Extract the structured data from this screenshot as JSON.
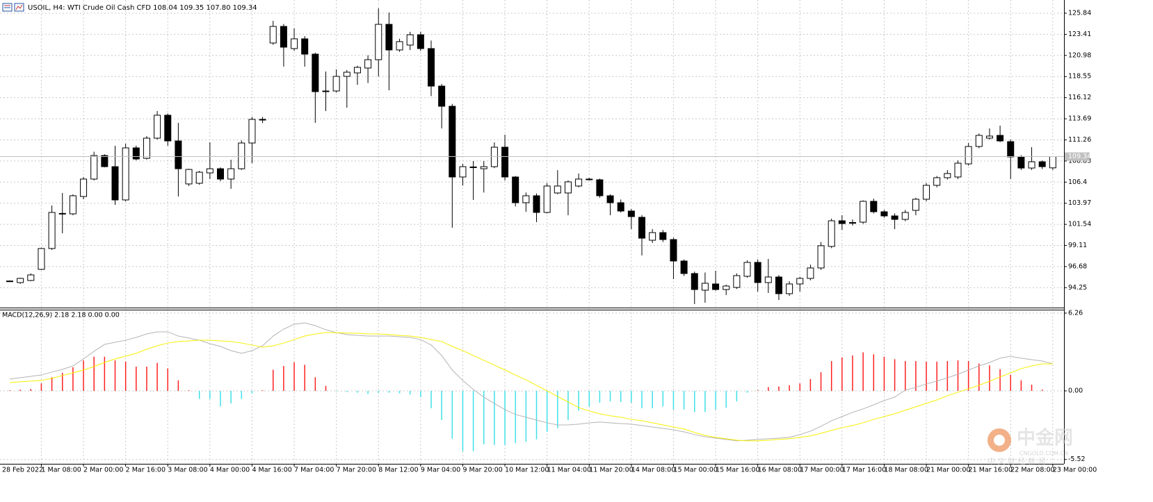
{
  "chart_data": [
    {
      "type": "candlestick",
      "title": "USOIL, H4:  WTI Crude Oil Cash CFD  108.04 109.35 107.80 109.34",
      "categories": [
        "28 Feb 2022",
        null,
        null,
        "1 Mar 08:00",
        null,
        null,
        null,
        "2 Mar 00:00",
        null,
        null,
        null,
        "2 Mar 16:00",
        null,
        null,
        null,
        "3 Mar 08:00",
        null,
        null,
        null,
        "4 Mar 00:00",
        null,
        null,
        null,
        "4 Mar 16:00",
        null,
        null,
        null,
        "7 Mar 04:00",
        null,
        null,
        null,
        "7 Mar 20:00",
        null,
        null,
        null,
        "8 Mar 12:00",
        null,
        null,
        null,
        "9 Mar 04:00",
        null,
        null,
        null,
        "9 Mar 20:00",
        null,
        null,
        null,
        "10 Mar 12:00",
        null,
        null,
        null,
        "11 Mar 04:00",
        null,
        null,
        null,
        "11 Mar 20:00",
        null,
        null,
        null,
        "14 Mar 08:00",
        null,
        null,
        null,
        "15 Mar 00:00",
        null,
        null,
        null,
        "15 Mar 16:00",
        null,
        null,
        null,
        "16 Mar 08:00",
        null,
        null,
        null,
        "17 Mar 00:00",
        null,
        null,
        null,
        "17 Mar 16:00",
        null,
        null,
        null,
        "18 Mar 08:00",
        null,
        null,
        null,
        "21 Mar 00:00",
        null,
        null,
        null,
        "21 Mar 16:00",
        null,
        null,
        null,
        "22 Mar 08:00",
        null,
        null,
        null,
        "23 Mar 00:00"
      ],
      "open": [
        95.0,
        94.84,
        95.08,
        96.36,
        98.76,
        102.75,
        102.75,
        104.75,
        106.75,
        109.46,
        108.18,
        104.35,
        110.34,
        109.14,
        111.46,
        114.1,
        111.14,
        106.19,
        106.27,
        107.46,
        107.94,
        106.75,
        107.94,
        110.9,
        113.54,
        122.41,
        124.32,
        121.77,
        122.89,
        121.13,
        116.89,
        116.89,
        118.57,
        118.97,
        119.53,
        120.49,
        124.56,
        121.61,
        122.17,
        123.36,
        121.77,
        117.45,
        115.13,
        106.99,
        108.1,
        107.94,
        108.18,
        110.42,
        106.99,
        104.03,
        104.83,
        102.91,
        105.15,
        105.15,
        105.95,
        106.75,
        106.67,
        104.83,
        104.03,
        103.07,
        102.35,
        99.71,
        100.59,
        99.79,
        97.32,
        95.88,
        93.96,
        94.68,
        94.04,
        94.28,
        95.56,
        97.16,
        94.84,
        95.48,
        93.56,
        94.68,
        95.32,
        96.52,
        99.0,
        101.95,
        101.71,
        101.79,
        104.19,
        102.99,
        102.51,
        102.11,
        103.15,
        104.43,
        106.03,
        106.91,
        106.99,
        108.5,
        110.5,
        111.46,
        111.78,
        111.06,
        109.3,
        108.02,
        108.74,
        108.04
      ],
      "high": [
        95.08,
        95.4,
        95.9,
        98.84,
        103.71,
        105.15,
        104.99,
        106.99,
        109.9,
        109.6,
        110.58,
        110.82,
        110.6,
        111.7,
        114.58,
        114.3,
        113.22,
        107.94,
        107.7,
        110.98,
        108.1,
        108.98,
        111.2,
        113.9,
        113.9,
        124.96,
        124.6,
        124.1,
        123.2,
        121.3,
        119.13,
        119.37,
        119.3,
        119.8,
        121.0,
        126.4,
        125.92,
        122.9,
        123.7,
        123.7,
        122.7,
        117.7,
        115.4,
        108.5,
        108.82,
        108.82,
        110.98,
        111.86,
        107.1,
        105.2,
        105.1,
        106.3,
        107.78,
        106.6,
        107.39,
        106.9,
        106.8,
        105.0,
        104.4,
        103.3,
        102.6,
        101.0,
        100.9,
        100.0,
        97.5,
        96.1,
        96.0,
        96.2,
        94.6,
        95.9,
        97.4,
        97.5,
        97.56,
        95.7,
        95.0,
        95.5,
        96.9,
        99.5,
        102.2,
        102.59,
        102.1,
        104.3,
        104.5,
        103.2,
        102.8,
        103.2,
        104.6,
        106.3,
        107.1,
        107.78,
        108.9,
        110.9,
        112.0,
        112.58,
        112.9,
        111.3,
        109.5,
        110.42,
        108.9,
        109.35
      ],
      "low": [
        94.92,
        94.7,
        95.0,
        96.28,
        98.6,
        100.51,
        102.59,
        104.43,
        106.6,
        108.1,
        103.79,
        104.2,
        108.9,
        109.0,
        111.3,
        110.58,
        104.75,
        105.95,
        106.1,
        106.75,
        106.5,
        105.63,
        107.8,
        108.58,
        113.2,
        122.2,
        119.69,
        121.5,
        119.69,
        113.22,
        114.58,
        116.7,
        114.97,
        117.6,
        117.8,
        118.57,
        116.97,
        121.4,
        121.6,
        121.5,
        116.3,
        112.58,
        101.15,
        106.0,
        104.35,
        105.2,
        108.0,
        106.6,
        103.6,
        102.99,
        101.79,
        102.8,
        105.0,
        102.59,
        105.8,
        106.6,
        104.6,
        102.59,
        102.9,
        100.99,
        97.96,
        99.4,
        99.5,
        95.24,
        95.6,
        92.36,
        92.52,
        93.9,
        93.4,
        94.1,
        95.4,
        93.8,
        93.64,
        92.84,
        93.3,
        93.8,
        95.1,
        96.3,
        98.8,
        100.9,
        101.4,
        101.6,
        102.8,
        102.3,
        100.99,
        101.9,
        102.59,
        104.2,
        105.8,
        106.7,
        106.75,
        108.3,
        110.3,
        111.3,
        111.0,
        106.75,
        107.8,
        107.8,
        107.9,
        107.8
      ],
      "close": [
        95.02,
        95.32,
        95.72,
        98.76,
        102.91,
        102.8,
        104.83,
        106.75,
        109.46,
        108.18,
        104.35,
        110.34,
        109.06,
        111.46,
        114.1,
        111.14,
        107.94,
        107.86,
        107.54,
        107.94,
        106.75,
        107.94,
        110.9,
        113.62,
        113.62,
        124.32,
        121.93,
        122.89,
        121.13,
        116.81,
        116.89,
        118.57,
        119.05,
        119.61,
        120.49,
        124.56,
        121.61,
        122.57,
        123.36,
        121.77,
        117.45,
        115.13,
        106.99,
        108.18,
        108.15,
        108.18,
        110.42,
        106.99,
        104.03,
        104.83,
        102.91,
        105.95,
        105.95,
        106.43,
        106.75,
        106.67,
        104.83,
        104.03,
        103.07,
        102.43,
        99.95,
        100.59,
        99.79,
        97.32,
        95.88,
        94.04,
        94.76,
        94.04,
        94.44,
        95.64,
        97.16,
        94.84,
        95.48,
        93.56,
        94.68,
        95.32,
        96.52,
        99.08,
        101.95,
        101.63,
        101.75,
        104.19,
        102.99,
        102.51,
        102.11,
        102.91,
        104.43,
        106.03,
        106.91,
        107.39,
        108.58,
        110.5,
        111.78,
        111.7,
        111.14,
        109.3,
        108.02,
        108.74,
        108.18,
        109.34
      ],
      "up_color": "#ffffff",
      "down_color": "#000000",
      "wick_color": "#000000",
      "ylim": [
        91.96,
        127.36
      ],
      "yticks": [
        94.25,
        96.68,
        99.11,
        101.54,
        103.97,
        106.4,
        108.83,
        111.26,
        113.69,
        116.12,
        118.55,
        120.98,
        123.41,
        125.84
      ],
      "last_price": 109.34,
      "last_price_color": "#c0c0c0",
      "grid": true
    },
    {
      "type": "macd",
      "title": "MACD(12,26,9) 2.18 2.18 0.00 0.00",
      "histogram": {
        "up_color": "#ff2020",
        "down_color": "#40e0e8",
        "values": [
          0.05,
          0.1,
          0.15,
          0.6,
          1.1,
          1.45,
          1.9,
          2.45,
          2.75,
          2.75,
          2.45,
          2.35,
          1.95,
          1.95,
          2.25,
          1.8,
          0.85,
          0.05,
          -0.65,
          -0.65,
          -1.25,
          -1.0,
          -0.65,
          -0.2,
          0.05,
          1.7,
          2.0,
          2.3,
          2.1,
          1.1,
          0.4,
          -0.05,
          -0.1,
          -0.15,
          -0.25,
          -0.15,
          -0.15,
          -0.2,
          -0.3,
          -0.5,
          -1.4,
          -2.35,
          -3.85,
          -4.85,
          -4.85,
          -4.3,
          -4.35,
          -4.35,
          -4.2,
          -4.1,
          -3.9,
          -3.3,
          -3.0,
          -2.35,
          -1.6,
          -1.25,
          -0.95,
          -0.85,
          -0.9,
          -0.95,
          -1.4,
          -1.4,
          -1.25,
          -1.5,
          -1.5,
          -1.7,
          -1.7,
          -1.5,
          -1.35,
          -0.85,
          -0.15,
          0.05,
          0.3,
          0.35,
          0.45,
          0.6,
          0.95,
          1.5,
          2.4,
          2.7,
          2.85,
          3.1,
          2.95,
          2.75,
          2.55,
          2.4,
          2.4,
          2.35,
          2.35,
          2.4,
          2.45,
          2.4,
          2.2,
          2.05,
          1.75,
          1.3,
          0.85,
          0.5,
          0.1,
          0
        ]
      },
      "lines": [
        {
          "color": "#b4b4b4",
          "values": [
            0.95,
            1.06,
            1.17,
            1.28,
            1.51,
            1.73,
            2.01,
            2.57,
            3.18,
            3.74,
            3.91,
            4.08,
            4.3,
            4.58,
            4.75,
            4.75,
            4.41,
            4.25,
            4.08,
            3.8,
            3.58,
            3.24,
            3.02,
            3.24,
            3.63,
            4.41,
            4.97,
            5.36,
            5.47,
            5.25,
            4.92,
            4.69,
            4.53,
            4.47,
            4.41,
            4.41,
            4.41,
            4.36,
            4.3,
            4.13,
            3.69,
            2.85,
            1.68,
            0.84,
            0.11,
            -0.5,
            -1.01,
            -1.51,
            -1.9,
            -2.12,
            -2.35,
            -2.57,
            -2.74,
            -2.74,
            -2.68,
            -2.57,
            -2.51,
            -2.57,
            -2.63,
            -2.68,
            -2.79,
            -2.91,
            -3.02,
            -3.13,
            -3.3,
            -3.52,
            -3.69,
            -3.8,
            -3.91,
            -4.02,
            -3.97,
            -3.91,
            -3.85,
            -3.8,
            -3.74,
            -3.52,
            -3.24,
            -2.85,
            -2.4,
            -2.07,
            -1.73,
            -1.45,
            -1.12,
            -0.78,
            -0.5,
            0.06,
            0.28,
            0.56,
            0.78,
            1.06,
            1.34,
            1.68,
            2.01,
            2.29,
            2.63,
            2.79,
            2.63,
            2.51,
            2.4,
            2.18
          ]
        },
        {
          "color": "#f5f000",
          "values": [
            0.67,
            0.73,
            0.78,
            0.84,
            1.01,
            1.23,
            1.45,
            1.68,
            1.96,
            2.29,
            2.57,
            2.79,
            3.02,
            3.35,
            3.63,
            3.85,
            3.97,
            4.02,
            4.08,
            4.08,
            4.02,
            3.97,
            3.85,
            3.69,
            3.52,
            3.63,
            3.85,
            4.13,
            4.41,
            4.58,
            4.69,
            4.69,
            4.64,
            4.64,
            4.58,
            4.58,
            4.53,
            4.47,
            4.41,
            4.3,
            4.13,
            3.97,
            3.58,
            3.24,
            2.85,
            2.46,
            2.07,
            1.68,
            1.28,
            0.89,
            0.45,
            0.0,
            -0.45,
            -0.89,
            -1.34,
            -1.62,
            -1.84,
            -2.01,
            -2.12,
            -2.29,
            -2.4,
            -2.57,
            -2.74,
            -2.91,
            -3.07,
            -3.35,
            -3.58,
            -3.74,
            -3.85,
            -3.97,
            -4.02,
            -4.02,
            -3.97,
            -3.91,
            -3.85,
            -3.74,
            -3.63,
            -3.41,
            -3.18,
            -2.96,
            -2.79,
            -2.57,
            -2.29,
            -2.07,
            -1.84,
            -1.56,
            -1.28,
            -1.01,
            -0.73,
            -0.39,
            -0.11,
            0.17,
            0.45,
            0.78,
            1.12,
            1.45,
            1.79,
            2.01,
            2.18,
            2.18
          ]
        }
      ],
      "ylim": [
        -5.87,
        6.48
      ],
      "yticks": [
        -5.52,
        {
          "value": 0,
          "label": "0.00"
        },
        6.26
      ],
      "grid": true
    }
  ],
  "watermark": {
    "name": "中金网",
    "site": "CNGOLD.COM.CN",
    "tagline": "中 文 财 经 新 闻"
  }
}
